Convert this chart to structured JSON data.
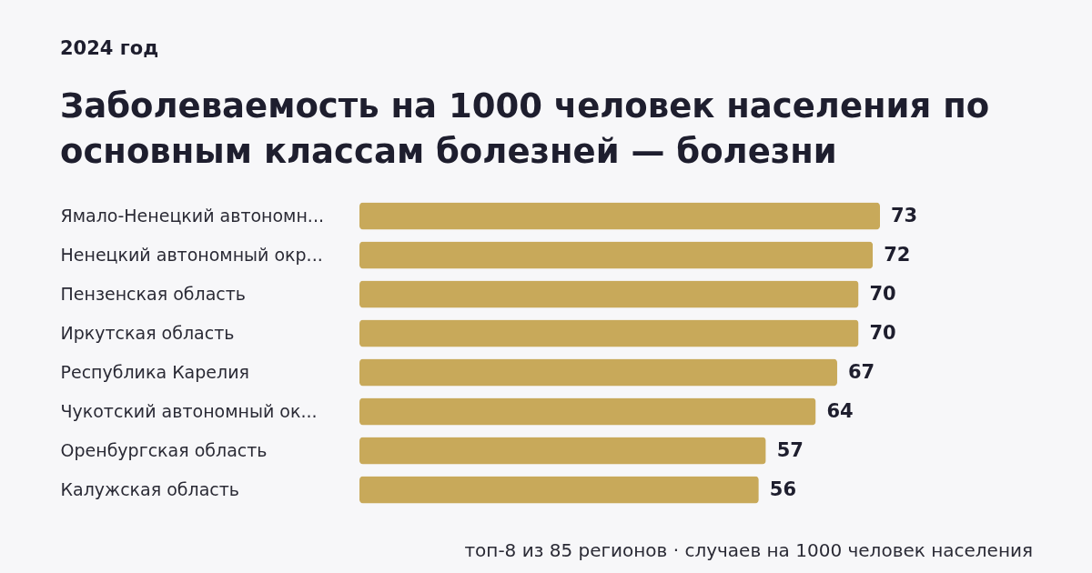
{
  "chart_data": {
    "type": "bar",
    "orientation": "horizontal",
    "title": "Заболеваемость на 1000 человек населения по основным классам болезней — болезни",
    "subtitle": "2024 год",
    "categories": [
      "Ямало-Ненецкий автономн...",
      "Ненецкий автономный окр...",
      "Пензенская область",
      "Иркутская область",
      "Республика Карелия",
      "Чукотский автономный ок...",
      "Оренбургская область",
      "Калужская область"
    ],
    "series": [
      {
        "color": "#c8a95a",
        "values": [
          73,
          72,
          70,
          70,
          67,
          64,
          57,
          56
        ]
      }
    ],
    "xlim": [
      0,
      73
    ],
    "data_labels": true,
    "tick_labels": "y",
    "annotations": [
      "топ-8 из 85 регионов · случаев на 1000 человек населения"
    ]
  }
}
